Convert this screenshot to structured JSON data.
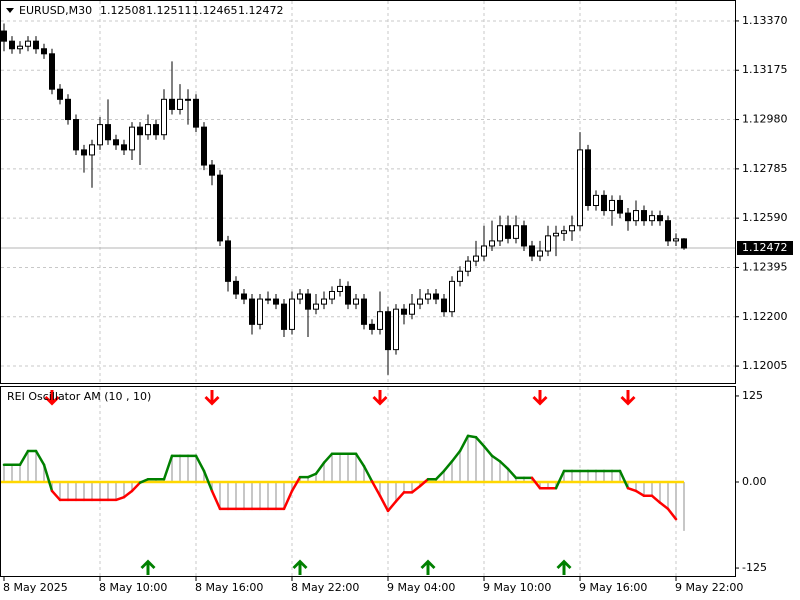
{
  "chart_data": [
    {
      "type": "candlestick",
      "title": "EURUSD,M30",
      "categories": [
        "8 May 2025",
        null,
        null,
        null,
        null,
        null,
        null,
        null,
        null,
        null,
        null,
        null,
        "8 May 10:00",
        null,
        null,
        null,
        null,
        null,
        null,
        null,
        null,
        null,
        null,
        null,
        "8 May 16:00",
        null,
        null,
        null,
        null,
        null,
        null,
        null,
        null,
        null,
        null,
        null,
        "8 May 22:00",
        null,
        null,
        null,
        null,
        null,
        null,
        null,
        null,
        null,
        null,
        null,
        "9 May 04:00",
        null,
        null,
        null,
        null,
        null,
        null,
        null,
        null,
        null,
        null,
        null,
        "9 May 10:00",
        null,
        null,
        null,
        null,
        null,
        null,
        null,
        null,
        null,
        null,
        null,
        "9 May 16:00",
        null,
        null,
        null,
        null,
        null,
        null,
        null,
        null,
        null,
        null,
        null,
        "9 May 22:00",
        null
      ],
      "open": [
        1.1333,
        1.1329,
        1.1326,
        1.1327,
        1.1329,
        1.1326,
        1.1324,
        1.131,
        1.1306,
        1.1298,
        1.1286,
        1.1284,
        1.1288,
        1.1296,
        1.129,
        1.1288,
        1.1286,
        1.1295,
        1.1292,
        1.1296,
        1.1292,
        1.1306,
        1.1302,
        1.1306,
        1.1306,
        1.1295,
        1.128,
        1.1276,
        1.125,
        1.1234,
        1.1229,
        1.1227,
        1.1217,
        1.1227,
        1.1227,
        1.1225,
        1.1215,
        1.1227,
        1.1229,
        1.1223,
        1.1225,
        1.1227,
        1.123,
        1.1232,
        1.1225,
        1.1227,
        1.1217,
        1.1215,
        1.1222,
        1.1207,
        1.1223,
        1.1221,
        1.1225,
        1.1227,
        1.1229,
        1.1227,
        1.1222,
        1.1234,
        1.1238,
        1.1242,
        1.1244,
        1.1248,
        1.125,
        1.1256,
        1.1251,
        1.1256,
        1.1248,
        1.1244,
        1.1246,
        1.1252,
        1.1253,
        1.1254,
        1.1256,
        1.1286,
        1.1264,
        1.1268,
        1.1262,
        1.1266,
        1.1261,
        1.1258,
        1.1262,
        1.1258,
        1.126,
        1.1258,
        1.125,
        1.12508
      ],
      "high": [
        1.1336,
        1.1331,
        1.1329,
        1.1331,
        1.1331,
        1.1328,
        1.1326,
        1.1312,
        1.1308,
        1.13,
        1.1288,
        1.129,
        1.1299,
        1.1306,
        1.1292,
        1.129,
        1.1297,
        1.1297,
        1.13,
        1.1298,
        1.131,
        1.1321,
        1.1312,
        1.131,
        1.1308,
        1.1297,
        1.1282,
        1.1278,
        1.1252,
        1.1236,
        1.1231,
        1.1229,
        1.1229,
        1.123,
        1.1229,
        1.1227,
        1.123,
        1.1231,
        1.1231,
        1.1229,
        1.123,
        1.1232,
        1.1235,
        1.1234,
        1.1229,
        1.1229,
        1.1219,
        1.123,
        1.1224,
        1.1225,
        1.1225,
        1.1229,
        1.1231,
        1.1231,
        1.1231,
        1.1229,
        1.1236,
        1.124,
        1.1244,
        1.125,
        1.1256,
        1.1258,
        1.126,
        1.126,
        1.126,
        1.1258,
        1.125,
        1.125,
        1.1256,
        1.1256,
        1.1256,
        1.126,
        1.1293,
        1.1288,
        1.127,
        1.127,
        1.1268,
        1.1268,
        1.1263,
        1.1266,
        1.1264,
        1.1262,
        1.1262,
        1.126,
        1.1253,
        1.12511
      ],
      "low": [
        1.1325,
        1.1324,
        1.1324,
        1.1325,
        1.1324,
        1.1322,
        1.1308,
        1.1304,
        1.1296,
        1.1284,
        1.1277,
        1.1271,
        1.1286,
        1.1288,
        1.1286,
        1.1284,
        1.1282,
        1.128,
        1.129,
        1.129,
        1.129,
        1.13,
        1.13,
        1.1296,
        1.1293,
        1.1278,
        1.1272,
        1.1248,
        1.123,
        1.1227,
        1.1225,
        1.1213,
        1.1215,
        1.1225,
        1.1223,
        1.1212,
        1.1213,
        1.1225,
        1.1212,
        1.1221,
        1.1223,
        1.1225,
        1.1228,
        1.1223,
        1.1223,
        1.1215,
        1.1213,
        1.1213,
        1.1197,
        1.1205,
        1.1217,
        1.1219,
        1.1223,
        1.1225,
        1.1225,
        1.122,
        1.122,
        1.1232,
        1.1236,
        1.124,
        1.1242,
        1.1246,
        1.1248,
        1.1249,
        1.1249,
        1.1246,
        1.1242,
        1.1242,
        1.1244,
        1.1244,
        1.125,
        1.125,
        1.1254,
        1.1262,
        1.1262,
        1.126,
        1.1256,
        1.1259,
        1.1254,
        1.1256,
        1.1256,
        1.1256,
        1.1256,
        1.1248,
        1.1248,
        1.12465
      ],
      "close": [
        1.1329,
        1.1326,
        1.1327,
        1.1329,
        1.1326,
        1.1324,
        1.131,
        1.1306,
        1.1298,
        1.1286,
        1.1284,
        1.1288,
        1.1296,
        1.129,
        1.1288,
        1.1286,
        1.1295,
        1.1292,
        1.1296,
        1.1292,
        1.1306,
        1.1302,
        1.1306,
        1.1306,
        1.1295,
        1.128,
        1.1276,
        1.125,
        1.1234,
        1.1229,
        1.1227,
        1.1217,
        1.1227,
        1.1227,
        1.1225,
        1.1215,
        1.1227,
        1.1229,
        1.1223,
        1.1225,
        1.1227,
        1.123,
        1.1232,
        1.1225,
        1.1227,
        1.1217,
        1.1215,
        1.1222,
        1.1207,
        1.1223,
        1.1221,
        1.1225,
        1.1227,
        1.1229,
        1.1227,
        1.1222,
        1.1234,
        1.1238,
        1.1242,
        1.1244,
        1.1248,
        1.125,
        1.1256,
        1.1251,
        1.1256,
        1.1248,
        1.1244,
        1.1246,
        1.1252,
        1.1253,
        1.1254,
        1.1256,
        1.1286,
        1.1264,
        1.1268,
        1.1262,
        1.1266,
        1.1261,
        1.1258,
        1.1262,
        1.1258,
        1.126,
        1.1258,
        1.125,
        1.12508,
        1.12472
      ],
      "ylim": [
        1.11938,
        1.13437
      ],
      "yticks": [
        {
          "value": 1.1337,
          "label": "1.13370"
        },
        1.13175,
        {
          "value": 1.1298,
          "label": "1.12980"
        },
        1.12785,
        {
          "value": 1.1259,
          "label": "1.12590"
        },
        1.12395,
        {
          "value": 1.122,
          "label": "1.12200"
        },
        1.12005
      ],
      "grid": true,
      "up_color": "#ffffff",
      "down_color": "#000000",
      "wick_color": "#000000"
    },
    {
      "type": "oscillator",
      "title": "REI Oscillator AM (10 , 10)",
      "values": [
        25,
        25,
        25,
        45,
        45,
        25,
        -13,
        -26,
        -26,
        -26,
        -26,
        -26,
        -26,
        -26,
        -26,
        -22,
        -13,
        -1,
        4,
        4,
        4,
        38,
        38,
        38,
        38,
        16,
        -13,
        -39,
        -39,
        -39,
        -39,
        -39,
        -39,
        -39,
        -39,
        -39,
        -13,
        7,
        7,
        12,
        28,
        41,
        41,
        41,
        41,
        23,
        1,
        -20,
        -42,
        -28,
        -15,
        -15,
        -6,
        4,
        4,
        16,
        30,
        45,
        67,
        65,
        52,
        38,
        30,
        19,
        6,
        6,
        6,
        -9,
        -9,
        -9,
        16,
        16,
        16,
        16,
        16,
        16,
        16,
        16,
        -9,
        -13,
        -20,
        -20,
        -30,
        -39,
        -54,
        -71
      ],
      "ylim": [
        -138,
        138
      ],
      "yticks": [
        125,
        {
          "value": 0,
          "label": "0.00"
        },
        -125
      ],
      "positive_color": "#008000",
      "negative_color": "#ff0000",
      "zero_color": "#ffd700",
      "histogram_color": "#b4b4b4",
      "sell_signals": [
        6,
        26,
        47,
        67,
        78
      ],
      "buy_signals": [
        18,
        37,
        53,
        70
      ],
      "sell_color": "#ff0000",
      "buy_color": "#008000"
    }
  ]
}
